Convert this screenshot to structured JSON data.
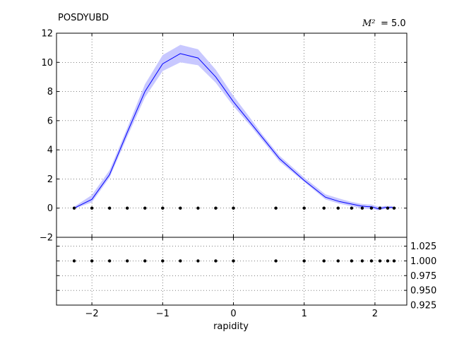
{
  "chart_data": [
    {
      "type": "line",
      "title": "POSDYUBD",
      "annotation": {
        "symbol": "M²",
        "value_text": "= 5.0"
      },
      "xlabel": "",
      "ylabel": "",
      "xlim": [
        -2.5,
        2.45
      ],
      "ylim": [
        -2,
        12
      ],
      "xticks": [
        -2,
        -1,
        0,
        1,
        2
      ],
      "yticks": [
        -2,
        0,
        2,
        4,
        6,
        8,
        10,
        12
      ],
      "ytick_labels": [
        "−2",
        "0",
        "2",
        "4",
        "6",
        "8",
        "10",
        "12"
      ],
      "grid": true,
      "colors": {
        "line": "#0000ff",
        "band": "#c8c8ff",
        "points": "#000000"
      },
      "series": [
        {
          "type": "line",
          "x": [
            -2.25,
            -2.0,
            -1.75,
            -1.5,
            -1.25,
            -1.0,
            -0.75,
            -0.5,
            -0.25,
            0.0,
            0.25,
            0.4,
            0.65,
            1.0,
            1.3,
            1.5,
            1.65,
            1.8,
            1.9,
            1.95,
            2.05,
            2.15,
            2.25
          ],
          "y": [
            0.0,
            0.6,
            2.3,
            5.2,
            8.0,
            9.9,
            10.6,
            10.3,
            9.0,
            7.3,
            5.8,
            4.9,
            3.4,
            1.9,
            0.75,
            0.45,
            0.3,
            0.15,
            0.1,
            0.1,
            -0.05,
            0.05,
            0.05
          ],
          "lower": [
            -0.05,
            0.4,
            2.1,
            4.9,
            7.6,
            9.4,
            10.0,
            9.8,
            8.6,
            7.0,
            5.6,
            4.7,
            3.2,
            1.8,
            0.6,
            0.3,
            0.15,
            0.0,
            -0.05,
            -0.05,
            -0.15,
            -0.05,
            -0.05
          ],
          "upper": [
            0.1,
            0.9,
            2.6,
            5.5,
            8.5,
            10.5,
            11.2,
            10.9,
            9.5,
            7.7,
            6.1,
            5.1,
            3.6,
            2.1,
            0.95,
            0.65,
            0.45,
            0.3,
            0.25,
            0.25,
            0.1,
            0.15,
            0.15
          ]
        },
        {
          "type": "scatter",
          "x": [
            -2.25,
            -2.0,
            -1.75,
            -1.5,
            -1.25,
            -1.0,
            -0.75,
            -0.5,
            -0.25,
            0.0,
            0.6,
            1.0,
            1.28,
            1.48,
            1.67,
            1.82,
            1.95,
            2.07,
            2.18,
            2.27
          ],
          "y": [
            0,
            0,
            0,
            0,
            0,
            0,
            0,
            0,
            0,
            0,
            0,
            0,
            0,
            0,
            0,
            0,
            0,
            0,
            0,
            0
          ]
        }
      ]
    },
    {
      "type": "scatter",
      "xlabel": "rapidity",
      "ylabel": "",
      "xlim": [
        -2.5,
        2.45
      ],
      "ylim": [
        0.925,
        1.04
      ],
      "xticks": [
        -2,
        -1,
        0,
        1,
        2
      ],
      "xtick_labels": [
        "−2",
        "−1",
        "0",
        "1",
        "2"
      ],
      "yticks": [
        0.925,
        0.95,
        0.975,
        1.0,
        1.025
      ],
      "ytick_labels": [
        "0.925",
        "0.950",
        "0.975",
        "1.000",
        "1.025"
      ],
      "grid": true,
      "series": [
        {
          "type": "scatter",
          "x": [
            -2.25,
            -2.0,
            -1.75,
            -1.5,
            -1.25,
            -1.0,
            -0.75,
            -0.5,
            -0.25,
            0.0,
            0.6,
            1.0,
            1.28,
            1.48,
            1.67,
            1.82,
            1.95,
            2.07,
            2.18,
            2.27
          ],
          "y": [
            1.0,
            1.0,
            1.0,
            1.0,
            1.0,
            1.0,
            1.0,
            1.0,
            1.0,
            1.0,
            1.0,
            1.0,
            1.0,
            1.0,
            1.0,
            1.0,
            1.0,
            1.0,
            1.0,
            1.0
          ]
        }
      ]
    }
  ]
}
